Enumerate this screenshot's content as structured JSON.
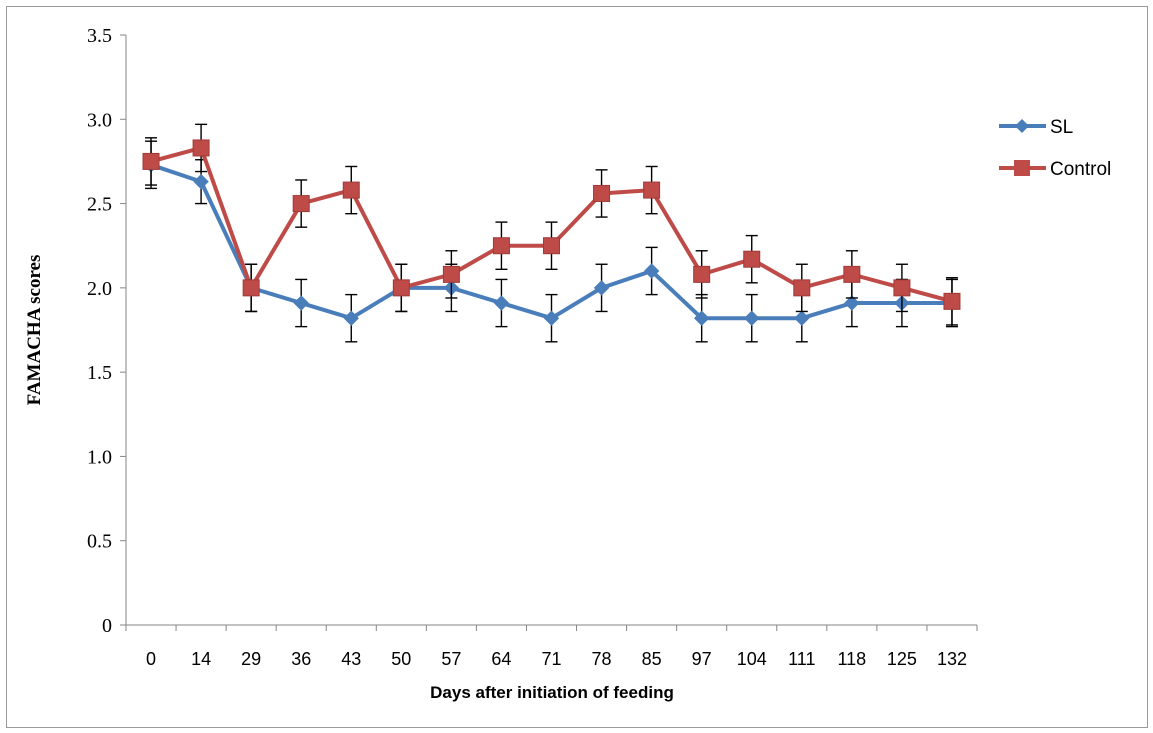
{
  "chart_data": {
    "type": "line",
    "title": "",
    "xlabel": "Days after initiation of feeding",
    "ylabel": "FAMACHA scores",
    "categories": [
      "0",
      "14",
      "29",
      "36",
      "43",
      "50",
      "57",
      "64",
      "71",
      "78",
      "85",
      "97",
      "104",
      "111",
      "118",
      "125",
      "132"
    ],
    "ylim": [
      0,
      3.5
    ],
    "yticks": [
      "0",
      "0.5",
      "1.0",
      "1.5",
      "2.0",
      "2.5",
      "3.0",
      "3.5"
    ],
    "grid": false,
    "legend_position": "right",
    "error_bars": true,
    "series": [
      {
        "name": "SL",
        "color": "#4a7ebb",
        "marker": "diamond",
        "values": [
          2.73,
          2.63,
          2.0,
          1.91,
          1.82,
          2.0,
          2.0,
          1.91,
          1.82,
          2.0,
          2.1,
          1.82,
          1.82,
          1.82,
          1.91,
          1.91,
          1.91
        ],
        "errors": [
          0.14,
          0.13,
          0.14,
          0.14,
          0.14,
          0.14,
          0.14,
          0.14,
          0.14,
          0.14,
          0.14,
          0.14,
          0.14,
          0.14,
          0.14,
          0.14,
          0.14
        ]
      },
      {
        "name": "Control",
        "color": "#be4b48",
        "marker": "square",
        "values": [
          2.75,
          2.83,
          2.0,
          2.5,
          2.58,
          2.0,
          2.08,
          2.25,
          2.25,
          2.56,
          2.58,
          2.08,
          2.17,
          2.0,
          2.08,
          2.0,
          1.92
        ],
        "errors": [
          0.14,
          0.14,
          0.14,
          0.14,
          0.14,
          0.14,
          0.14,
          0.14,
          0.14,
          0.14,
          0.14,
          0.14,
          0.14,
          0.14,
          0.14,
          0.14,
          0.14
        ]
      }
    ]
  }
}
